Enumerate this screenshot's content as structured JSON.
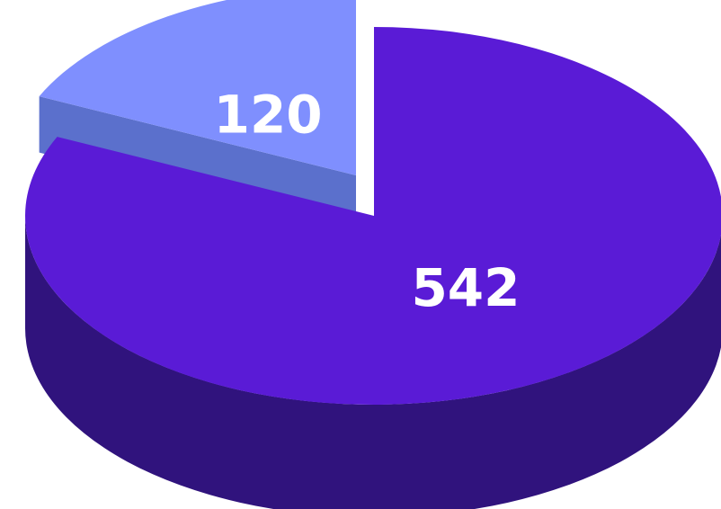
{
  "chart_data": {
    "type": "pie",
    "style": "3d-exploded",
    "categories": [
      "",
      ""
    ],
    "values": [
      542,
      120
    ],
    "data_labels": [
      "542",
      "120"
    ],
    "colors": {
      "top": [
        "#5a1bd6",
        "#7f8ffe"
      ],
      "side": [
        "#30137d",
        "#5b70cc"
      ]
    },
    "exploded_slice": 1,
    "legend": "none",
    "title": ""
  }
}
